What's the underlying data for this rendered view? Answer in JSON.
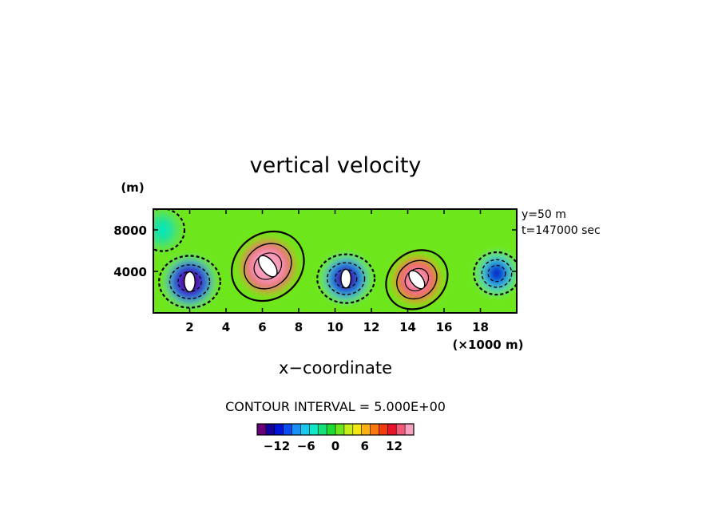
{
  "chart_data": {
    "type": "heatmap",
    "title": "vertical velocity",
    "xlabel": "x−coordinate",
    "ylabel": "(m)",
    "x_unit_label": "(×1000 m)",
    "xlim": [
      0,
      20
    ],
    "ylim": [
      0,
      10000
    ],
    "x_ticks": [
      2,
      4,
      6,
      8,
      10,
      12,
      14,
      16,
      18
    ],
    "y_ticks": [
      4000,
      8000
    ],
    "annotations": [
      "y=50 m",
      "t=147000 sec"
    ],
    "contour_interval_label": "CONTOUR INTERVAL = 5.000E+00",
    "colorbar": {
      "tick_labels": [
        "−12",
        "−6",
        "0",
        "6",
        "12"
      ],
      "tick_values": [
        -12,
        -6,
        0,
        6,
        12
      ],
      "min": -16,
      "max": 16,
      "colors": [
        "#6a0078",
        "#14009c",
        "#0014d8",
        "#0a4cf0",
        "#1890f8",
        "#18c8f0",
        "#10e8c8",
        "#14e07c",
        "#20dc32",
        "#6ee61e",
        "#c8ee18",
        "#f4e614",
        "#fcb014",
        "#fa7810",
        "#f23c10",
        "#e8142c",
        "#f05a78",
        "#f8a0c0"
      ]
    },
    "features": [
      {
        "type": "updraft",
        "x": 6.3,
        "z": 4500,
        "peak": 20
      },
      {
        "type": "updraft",
        "x": 14.5,
        "z": 3200,
        "peak": 17
      },
      {
        "type": "downdraft",
        "x": 2.0,
        "z": 3000,
        "peak": -16
      },
      {
        "type": "downdraft",
        "x": 10.6,
        "z": 3300,
        "peak": -15
      },
      {
        "type": "downdraft",
        "x": 18.9,
        "z": 3800,
        "peak": -12
      },
      {
        "type": "downdraft",
        "x": 0.5,
        "z": 8000,
        "peak": -4
      }
    ]
  }
}
